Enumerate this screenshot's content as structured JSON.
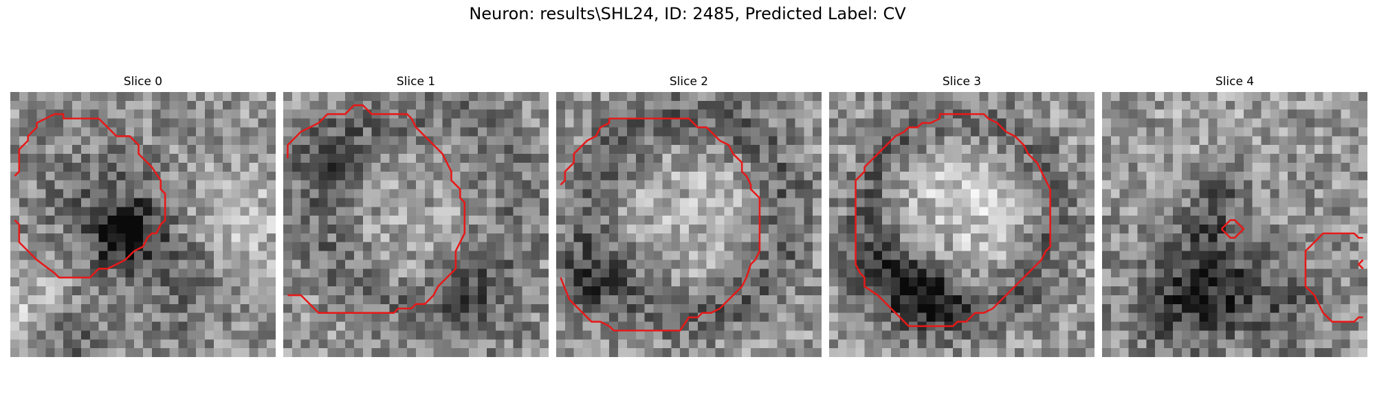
{
  "figure": {
    "title": "Neuron: results\\SHL24, ID: 2485, Predicted Label: CV"
  },
  "slices": [
    {
      "title": "Slice 0"
    },
    {
      "title": "Slice 1"
    },
    {
      "title": "Slice 2"
    },
    {
      "title": "Slice 3"
    },
    {
      "title": "Slice 4"
    }
  ],
  "colors": {
    "contour": "#e61919",
    "background": "#ffffff"
  }
}
